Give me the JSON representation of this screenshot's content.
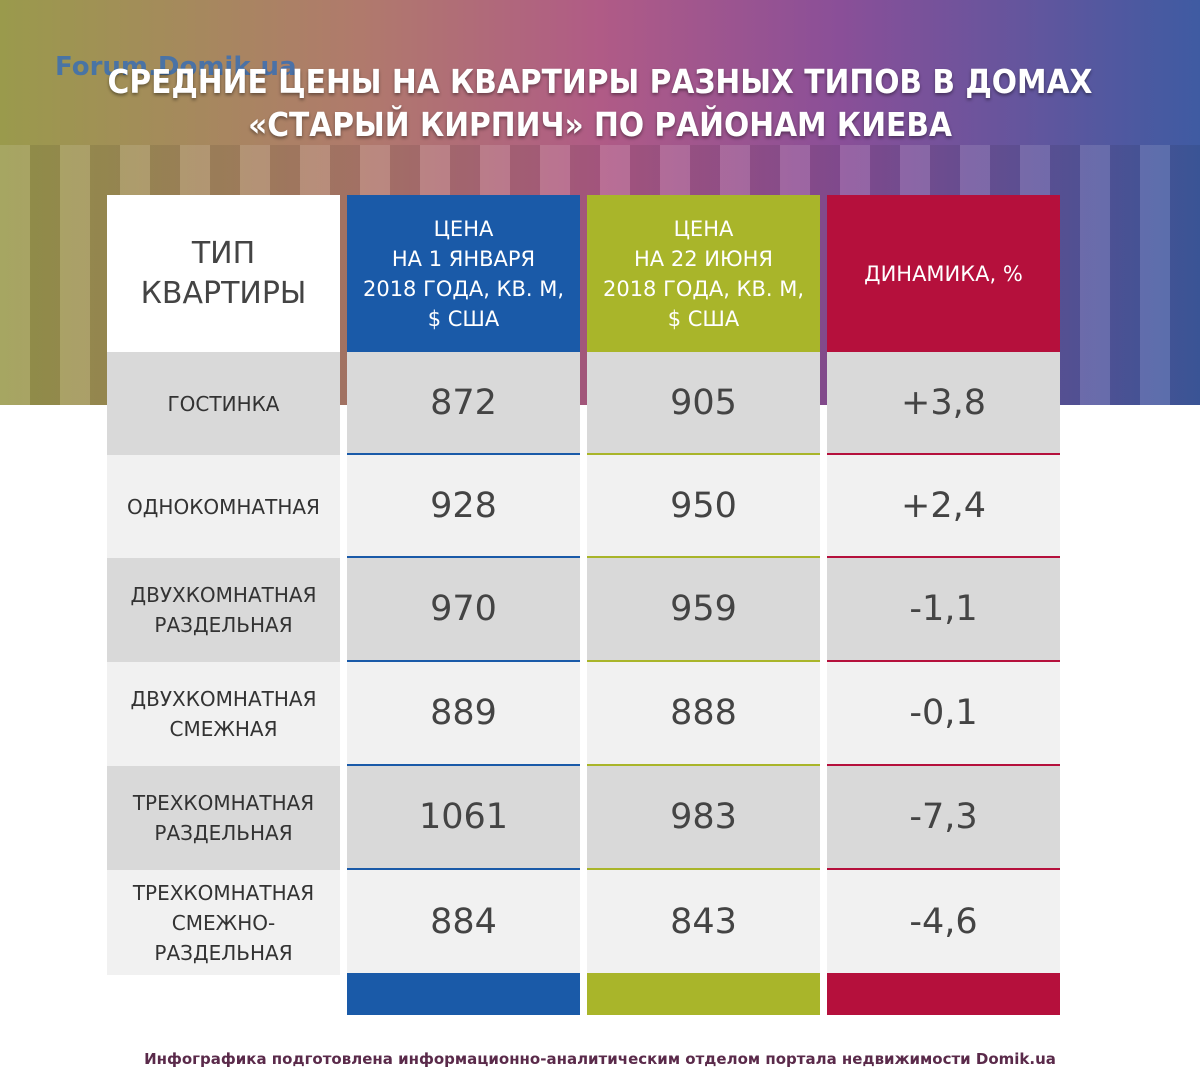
{
  "logo": "Forum.Domik.ua",
  "title": [
    "СРЕДНИЕ ЦЕНЫ НА КВАРТИРЫ РАЗНЫХ ТИПОВ В ДОМАХ",
    "«СТАРЫЙ КИРПИЧ» ПО РАЙОНАМ КИЕВА"
  ],
  "table": {
    "header": [
      [
        "ТИП",
        "КВАРТИРЫ"
      ],
      [
        "ЦЕНА",
        "НА 1 ЯНВАРЯ",
        "2018 ГОДА, КВ. М,",
        "$ США"
      ],
      [
        "ЦЕНА",
        "НА 22 ИЮНЯ",
        "2018 ГОДА, КВ. М,",
        "$ США"
      ],
      [
        "ДИНАМИКА, %"
      ]
    ],
    "rows": [
      [
        [
          "ГОСТИНКА"
        ],
        "872",
        "905",
        "+3,8"
      ],
      [
        [
          "ОДНОКОМНАТНАЯ"
        ],
        "928",
        "950",
        "+2,4"
      ],
      [
        [
          "ДВУХКОМНАТНАЯ",
          "РАЗДЕЛЬНАЯ"
        ],
        "970",
        "959",
        "-1,1"
      ],
      [
        [
          "ДВУХКОМНАТНАЯ",
          "СМЕЖНАЯ"
        ],
        "889",
        "888",
        "-0,1"
      ],
      [
        [
          "ТРЕХКОМНАТНАЯ",
          "РАЗДЕЛЬНАЯ"
        ],
        "1061",
        "983",
        "-7,3"
      ],
      [
        [
          "ТРЕХКОМНАТНАЯ",
          "СМЕЖНО-",
          "РАЗДЕЛЬНАЯ"
        ],
        "884",
        "843",
        "-4,6"
      ]
    ]
  },
  "footer": "Инфографика подготовлена информационно-аналитическим отделом портала недвижимости Domik.ua"
}
